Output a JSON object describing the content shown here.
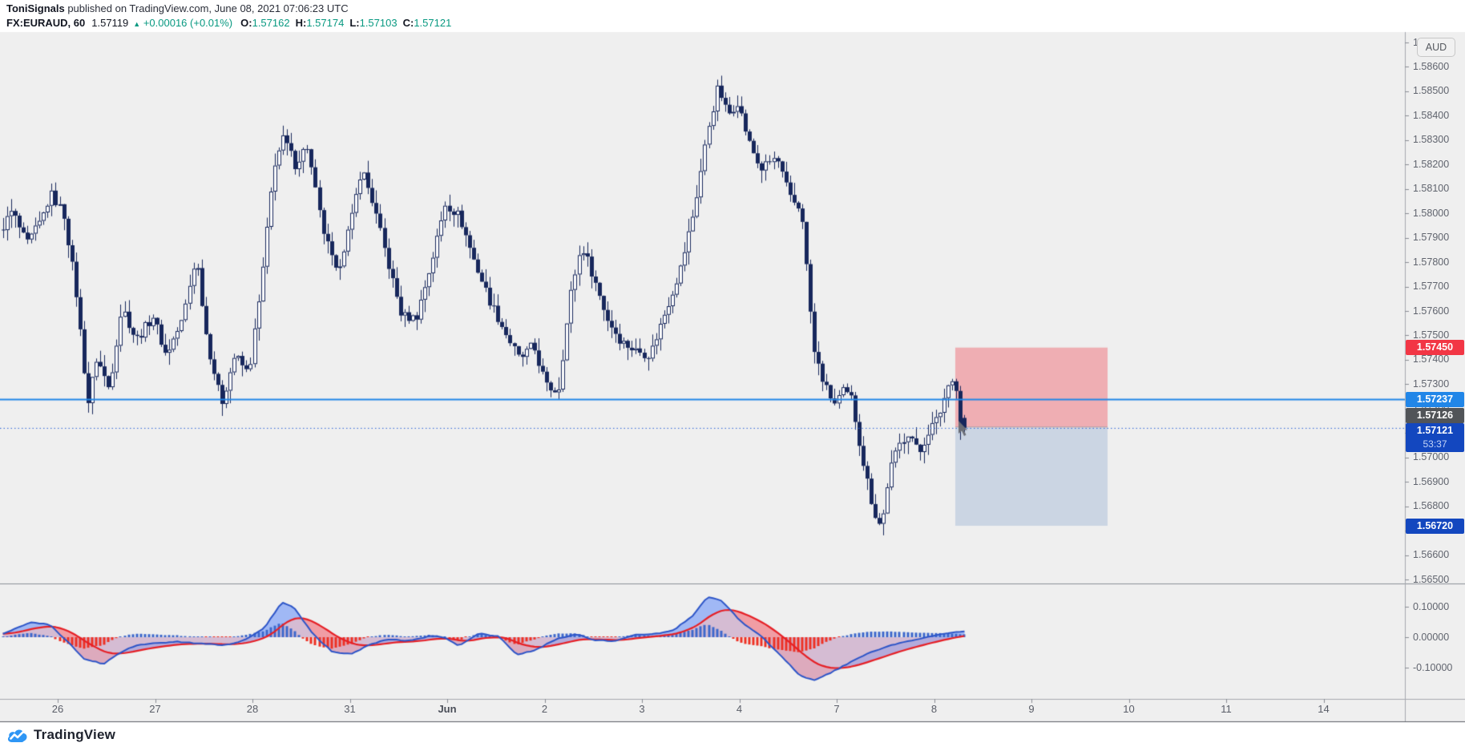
{
  "header": {
    "publisher": "ToniSignals",
    "published_suffix": " published on TradingView.com, June 08, 2021 07:06:23 UTC",
    "symbol": "FX:EURAUD, 60",
    "last_price": "1.57119",
    "change_arrow": "▲",
    "change": "+0.00016 (+0.01%)",
    "o_label": "O:",
    "o_value": "1.57162",
    "h_label": "H:",
    "h_value": "1.57174",
    "l_label": "L:",
    "l_value": "1.57103",
    "c_label": "C:",
    "c_value": "1.57121"
  },
  "price_axis": {
    "currency_button": "AUD",
    "ticks": [
      "1.58700",
      "1.58600",
      "1.58500",
      "1.58400",
      "1.58300",
      "1.58200",
      "1.58100",
      "1.58000",
      "1.57900",
      "1.57800",
      "1.57700",
      "1.57600",
      "1.57500",
      "1.57400",
      "1.57300",
      "1.57200",
      "1.57100",
      "1.57000",
      "1.56900",
      "1.56800",
      "1.56700",
      "1.56600",
      "1.56500"
    ]
  },
  "indicator_axis": {
    "ticks": [
      "0.10000",
      "0.00000",
      "-0.10000"
    ]
  },
  "time_axis": {
    "labels": [
      "26",
      "27",
      "28",
      "31",
      "Jun",
      "2",
      "3",
      "4",
      "7",
      "8",
      "9",
      "10",
      "11",
      "14"
    ],
    "month_index": 4
  },
  "badges": {
    "stop_label": "1.57450",
    "line_label": "1.57237",
    "entry_label": "1.57126",
    "last_label": "1.57121",
    "countdown": "53:37",
    "target_label": "1.56720"
  },
  "footer": {
    "brand": "TradingView"
  },
  "colors": {
    "panel_bg": "#efefef",
    "axis_text": "#60646e",
    "border": "#a6a9b0",
    "divider": "#8c8f98",
    "bottom_border": "#5a5d64",
    "candle_navy": "#17275c",
    "candle_up_fill": "#fefefe",
    "blue_line": "#2186e8",
    "dotted_line": "#2a62d8",
    "risk_fill": "rgba(242,54,69,0.35)",
    "reward_fill": "rgba(62,108,179,0.20)",
    "entry_edge": "rgba(110,70,80,0.55)",
    "badge_stop": "#f23645",
    "badge_line": "#2186e8",
    "badge_entry": "#515458",
    "badge_last": "#1347bf",
    "badge_target": "#1347bf",
    "macd_blue": "#2d55c8",
    "macd_red": "#e62026",
    "hist_blue": "#3d68cc",
    "hist_red": "#ee3124",
    "fill_blue": "rgba(41,98,255,0.30)",
    "fill_red": "rgba(242,54,69,0.30)",
    "area_blue": "rgba(41,98,255,0.13)",
    "area_red": "rgba(242,54,69,0.20)",
    "teal": "#089981"
  },
  "chart_data": {
    "type": "candlestick",
    "title": "FX:EURAUD, 60 hourly with MACD-style oscillator",
    "y_axis": {
      "min": 1.565,
      "max": 1.587,
      "tick_step": 0.001
    },
    "oscillator_axis": {
      "ticks": [
        0.1,
        0.0,
        -0.1
      ]
    },
    "current_ohlc": {
      "open": 1.57162,
      "high": 1.57174,
      "low": 1.57103,
      "close": 1.57121
    },
    "levels": {
      "blue_line": 1.57237,
      "dotted_last": 1.57121,
      "stop": 1.5745,
      "entry": 1.57126,
      "target": 1.5672
    },
    "zones": {
      "risk": {
        "top": 1.5745,
        "bottom": 1.57126
      },
      "reward": {
        "top": 1.57121,
        "bottom": 1.5672
      },
      "t_from": 9.218,
      "t_to": 10.782
    },
    "bars": {
      "count": 238,
      "t_first": -0.5833,
      "bars_per_day": 24
    },
    "price_path": [
      [
        -0.583,
        1.5792
      ],
      [
        -0.45,
        1.5801
      ],
      [
        -0.3,
        1.5787
      ],
      [
        -0.15,
        1.5797
      ],
      [
        -0.05,
        1.5808
      ],
      [
        0.08,
        1.58
      ],
      [
        0.2,
        1.577
      ],
      [
        0.33,
        1.5722
      ],
      [
        0.42,
        1.5741
      ],
      [
        0.55,
        1.5728
      ],
      [
        0.68,
        1.5762
      ],
      [
        0.82,
        1.5748
      ],
      [
        1.0,
        1.5758
      ],
      [
        1.13,
        1.5742
      ],
      [
        1.3,
        1.5756
      ],
      [
        1.44,
        1.5783
      ],
      [
        1.55,
        1.5748
      ],
      [
        1.7,
        1.5722
      ],
      [
        1.84,
        1.5742
      ],
      [
        1.98,
        1.5734
      ],
      [
        2.1,
        1.5768
      ],
      [
        2.24,
        1.582
      ],
      [
        2.34,
        1.5831
      ],
      [
        2.46,
        1.582
      ],
      [
        2.58,
        1.5828
      ],
      [
        2.73,
        1.5795
      ],
      [
        2.88,
        1.5775
      ],
      [
        3.04,
        1.5798
      ],
      [
        3.14,
        1.5819
      ],
      [
        3.26,
        1.5804
      ],
      [
        3.42,
        1.5778
      ],
      [
        3.55,
        1.5758
      ],
      [
        3.7,
        1.5757
      ],
      [
        3.86,
        1.578
      ],
      [
        4.0,
        1.5804
      ],
      [
        4.14,
        1.5799
      ],
      [
        4.3,
        1.578
      ],
      [
        4.46,
        1.5764
      ],
      [
        4.62,
        1.5751
      ],
      [
        4.76,
        1.574
      ],
      [
        4.9,
        1.5746
      ],
      [
        5.04,
        1.5729
      ],
      [
        5.16,
        1.5727
      ],
      [
        5.3,
        1.577
      ],
      [
        5.4,
        1.5787
      ],
      [
        5.52,
        1.5774
      ],
      [
        5.66,
        1.5757
      ],
      [
        5.8,
        1.5748
      ],
      [
        5.94,
        1.5744
      ],
      [
        6.1,
        1.5742
      ],
      [
        6.26,
        1.576
      ],
      [
        6.42,
        1.5778
      ],
      [
        6.56,
        1.5802
      ],
      [
        6.7,
        1.5835
      ],
      [
        6.8,
        1.5852
      ],
      [
        6.9,
        1.584
      ],
      [
        7.0,
        1.5846
      ],
      [
        7.12,
        1.5829
      ],
      [
        7.24,
        1.5818
      ],
      [
        7.4,
        1.5823
      ],
      [
        7.54,
        1.5806
      ],
      [
        7.66,
        1.5801
      ],
      [
        7.73,
        1.5768
      ],
      [
        7.79,
        1.5743
      ],
      [
        7.9,
        1.5729
      ],
      [
        8.0,
        1.5722
      ],
      [
        8.08,
        1.5727
      ],
      [
        8.17,
        1.5724
      ],
      [
        8.28,
        1.57
      ],
      [
        8.4,
        1.5678
      ],
      [
        8.48,
        1.5671
      ],
      [
        8.56,
        1.5694
      ],
      [
        8.66,
        1.5705
      ],
      [
        8.76,
        1.5711
      ],
      [
        8.86,
        1.5701
      ],
      [
        8.96,
        1.5711
      ],
      [
        9.06,
        1.5716
      ],
      [
        9.16,
        1.5729
      ],
      [
        9.23,
        1.5735
      ],
      [
        9.2917,
        1.5712
      ]
    ],
    "macd": {
      "path": [
        [
          -0.583,
          0.01
        ],
        [
          -0.3,
          0.05
        ],
        [
          -0.1,
          0.04
        ],
        [
          0.1,
          -0.02
        ],
        [
          0.25,
          -0.07
        ],
        [
          0.45,
          -0.088
        ],
        [
          0.65,
          -0.045
        ],
        [
          0.8,
          -0.025
        ],
        [
          1.0,
          -0.02
        ],
        [
          1.2,
          -0.015
        ],
        [
          1.5,
          -0.022
        ],
        [
          1.7,
          -0.026
        ],
        [
          1.9,
          -0.01
        ],
        [
          2.1,
          0.03
        ],
        [
          2.28,
          0.115
        ],
        [
          2.4,
          0.1
        ],
        [
          2.6,
          0.01
        ],
        [
          2.8,
          -0.048
        ],
        [
          3.0,
          -0.055
        ],
        [
          3.2,
          -0.022
        ],
        [
          3.4,
          -0.006
        ],
        [
          3.6,
          -0.012
        ],
        [
          3.8,
          0.004
        ],
        [
          3.95,
          0.0
        ],
        [
          4.1,
          -0.028
        ],
        [
          4.3,
          0.012
        ],
        [
          4.5,
          0.004
        ],
        [
          4.7,
          -0.058
        ],
        [
          4.9,
          -0.04
        ],
        [
          5.1,
          -0.006
        ],
        [
          5.3,
          0.01
        ],
        [
          5.5,
          -0.01
        ],
        [
          5.7,
          -0.013
        ],
        [
          5.9,
          0.008
        ],
        [
          6.1,
          0.01
        ],
        [
          6.3,
          0.022
        ],
        [
          6.5,
          0.07
        ],
        [
          6.65,
          0.132
        ],
        [
          6.8,
          0.12
        ],
        [
          7.0,
          0.05
        ],
        [
          7.2,
          0.005
        ],
        [
          7.4,
          -0.06
        ],
        [
          7.6,
          -0.125
        ],
        [
          7.75,
          -0.142
        ],
        [
          7.9,
          -0.12
        ],
        [
          8.1,
          -0.086
        ],
        [
          8.3,
          -0.052
        ],
        [
          8.5,
          -0.03
        ],
        [
          8.7,
          -0.013
        ],
        [
          8.9,
          0.0
        ],
        [
          9.1,
          0.013
        ],
        [
          9.2917,
          0.02
        ]
      ],
      "signal_ema_alpha": 0.13,
      "hist_scale": 0.62
    }
  }
}
